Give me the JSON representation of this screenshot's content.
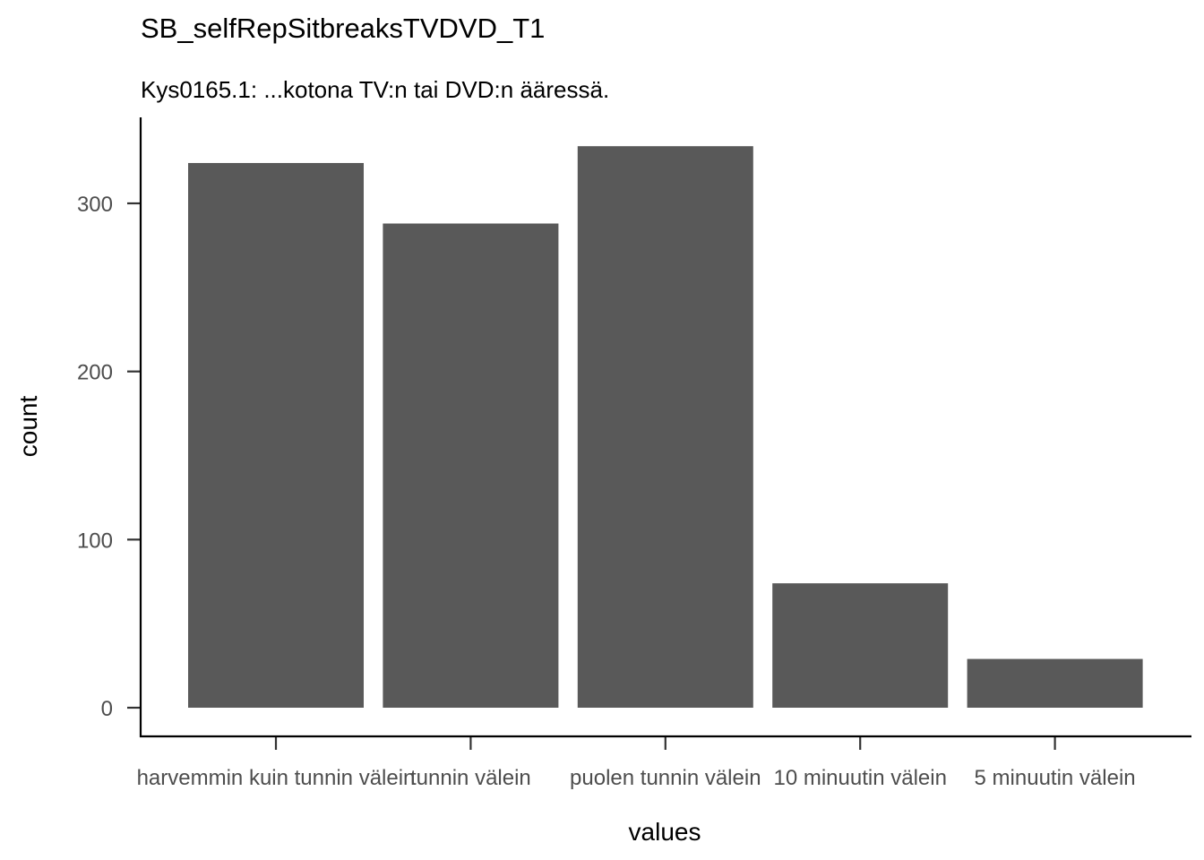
{
  "chart_data": {
    "type": "bar",
    "title": "SB_selfRepSitbreaksTVDVD_T1",
    "subtitle": "Kys0165.1: ...kotona TV:n tai DVD:n ääressä.",
    "xlabel": "values",
    "ylabel": "count",
    "categories": [
      "harvemmin kuin tunnin välein",
      "tunnin välein",
      "puolen tunnin välein",
      "10 minuutin välein",
      "5 minuutin välein"
    ],
    "values": [
      324,
      288,
      334,
      74,
      29
    ],
    "ylim": [
      0,
      350
    ],
    "yticks": [
      0,
      100,
      200,
      300
    ],
    "grid": false,
    "bar_color": "#595959",
    "legend": "none"
  }
}
